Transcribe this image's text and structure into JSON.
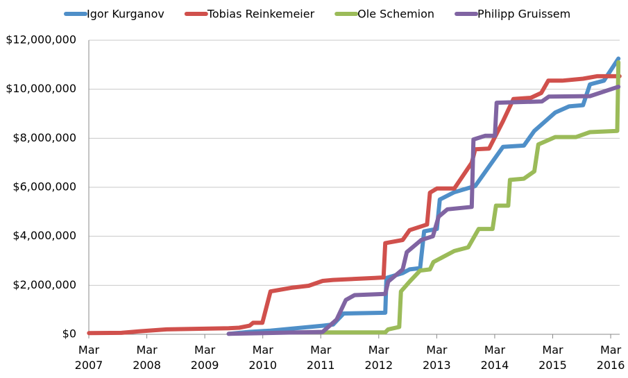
{
  "chart_data": {
    "type": "line",
    "xlim": [
      2007.167,
      2016.322
    ],
    "xticks": [
      {
        "value": 2007.167,
        "label": "Mar 2007"
      },
      {
        "value": 2008.167,
        "label": "Mar 2008"
      },
      {
        "value": 2009.167,
        "label": "Mar 2009"
      },
      {
        "value": 2010.167,
        "label": "Mar 2010"
      },
      {
        "value": 2011.167,
        "label": "Mar 2011"
      },
      {
        "value": 2012.167,
        "label": "Mar 2012"
      },
      {
        "value": 2013.167,
        "label": "Mar 2013"
      },
      {
        "value": 2014.167,
        "label": "Mar 2014"
      },
      {
        "value": 2015.167,
        "label": "Mar 2015"
      },
      {
        "value": 2016.167,
        "label": "Mar 2016"
      }
    ],
    "ylim": [
      0,
      12000000
    ],
    "yticks": [
      {
        "value": 0,
        "label": "$0"
      },
      {
        "value": 2000000,
        "label": "$2,000,000"
      },
      {
        "value": 4000000,
        "label": "$4,000,000"
      },
      {
        "value": 6000000,
        "label": "$6,000,000"
      },
      {
        "value": 8000000,
        "label": "$8,000,000"
      },
      {
        "value": 10000000,
        "label": "$10,000,000"
      },
      {
        "value": 12000000,
        "label": "$12,000,000"
      }
    ],
    "grid": true,
    "legend": "top",
    "series": [
      {
        "name": "Igor Kurganov",
        "color": "#4f8fc8",
        "x": [
          2009.58,
          2009.94,
          2010.3,
          2011.2,
          2011.38,
          2011.56,
          2012.28,
          2012.3,
          2012.58,
          2012.7,
          2012.88,
          2012.95,
          2013.17,
          2013.22,
          2013.47,
          2013.83,
          2014.31,
          2014.67,
          2014.85,
          2015.21,
          2015.45,
          2015.69,
          2015.81,
          2016.05,
          2016.3
        ],
        "values": [
          20000,
          100000,
          150000,
          350000,
          400000,
          850000,
          880000,
          2300000,
          2500000,
          2650000,
          2700000,
          4200000,
          4300000,
          5500000,
          5800000,
          6050000,
          7650000,
          7700000,
          8300000,
          9050000,
          9300000,
          9350000,
          10200000,
          10350000,
          11250000
        ]
      },
      {
        "name": "Tobias Reinkemeier",
        "color": "#d0504c",
        "x": [
          2007.17,
          2007.73,
          2008.03,
          2008.51,
          2009.58,
          2009.76,
          2009.94,
          2010.0,
          2010.16,
          2010.3,
          2010.66,
          2010.96,
          2011.2,
          2011.38,
          2012.1,
          2012.25,
          2012.28,
          2012.58,
          2012.7,
          2013.0,
          2013.05,
          2013.17,
          2013.47,
          2013.77,
          2013.83,
          2014.07,
          2014.31,
          2014.49,
          2014.79,
          2014.97,
          2015.09,
          2015.33,
          2015.69,
          2015.93,
          2016.32
        ],
        "values": [
          50000,
          60000,
          120000,
          200000,
          250000,
          270000,
          350000,
          470000,
          470000,
          1750000,
          1900000,
          1980000,
          2180000,
          2220000,
          2300000,
          2320000,
          3720000,
          3850000,
          4250000,
          4480000,
          5780000,
          5950000,
          5950000,
          7000000,
          7550000,
          7580000,
          8700000,
          9600000,
          9650000,
          9850000,
          10350000,
          10350000,
          10430000,
          10530000,
          10530000
        ]
      },
      {
        "name": "Ole Schemion",
        "color": "#9bbb59",
        "x": [
          2011.2,
          2012.28,
          2012.33,
          2012.52,
          2012.55,
          2012.7,
          2012.88,
          2013.05,
          2013.11,
          2013.47,
          2013.71,
          2013.89,
          2014.13,
          2014.19,
          2014.4,
          2014.43,
          2014.67,
          2014.85,
          2014.92,
          2015.21,
          2015.57,
          2015.81,
          2016.28,
          2016.3
        ],
        "values": [
          80000,
          80000,
          200000,
          300000,
          1750000,
          2150000,
          2600000,
          2650000,
          2950000,
          3400000,
          3550000,
          4300000,
          4300000,
          5250000,
          5250000,
          6300000,
          6350000,
          6650000,
          7750000,
          8050000,
          8050000,
          8250000,
          8300000,
          11100000
        ]
      },
      {
        "name": "Philipp Gruissem",
        "color": "#8064a2",
        "x": [
          2009.58,
          2011.2,
          2011.44,
          2011.6,
          2011.75,
          2012.28,
          2012.33,
          2012.58,
          2012.65,
          2012.9,
          2013.1,
          2013.2,
          2013.35,
          2013.77,
          2013.8,
          2014.0,
          2014.17,
          2014.2,
          2014.98,
          2015.1,
          2015.81,
          2016.3
        ],
        "values": [
          20000,
          100000,
          600000,
          1400000,
          1600000,
          1650000,
          2150000,
          2650000,
          3350000,
          3850000,
          4000000,
          4800000,
          5100000,
          5200000,
          7950000,
          8100000,
          8100000,
          9450000,
          9500000,
          9700000,
          9720000,
          10100000
        ]
      }
    ]
  }
}
